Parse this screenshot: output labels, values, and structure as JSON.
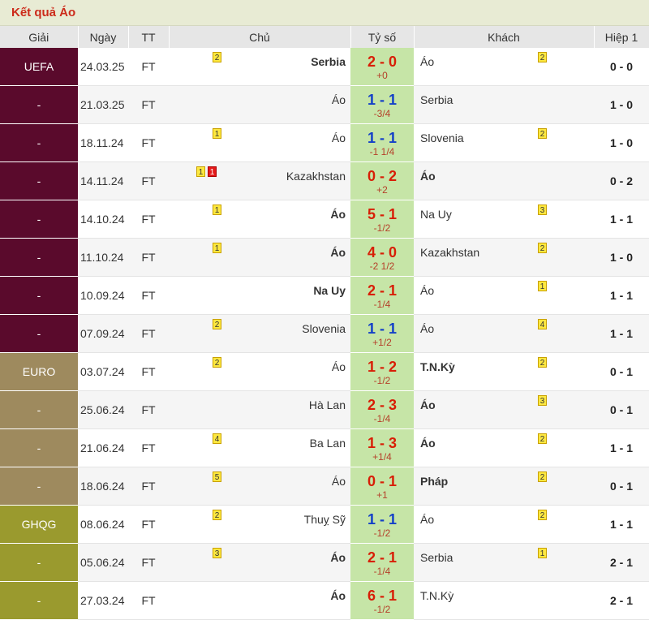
{
  "title": "Kết quả Áo",
  "columns": [
    "Giải",
    "Ngày",
    "TT",
    "Chủ",
    "Tỷ số",
    "Khách",
    "Hiệp 1"
  ],
  "league_colors": {
    "UEFA": "#5a0a2c",
    "EURO": "#9e8a5e",
    "GHQG": "#9a9a2e"
  },
  "rows": [
    {
      "league": "UEFA",
      "league_group": "UEFA",
      "date": "24.03.25",
      "status": "FT",
      "home": "Serbia",
      "home_bold": true,
      "home_cards": [
        {
          "type": "yellow",
          "n": "2"
        }
      ],
      "score": "2 - 0",
      "result": "win",
      "hc": "+0",
      "away": "Áo",
      "away_bold": false,
      "away_cards": [
        {
          "type": "yellow",
          "n": "2"
        }
      ],
      "ht": "0 - 0"
    },
    {
      "league": "-",
      "league_group": "UEFA",
      "date": "21.03.25",
      "status": "FT",
      "home": "Áo",
      "home_bold": false,
      "home_cards": [],
      "score": "1 - 1",
      "result": "draw",
      "hc": "-3/4",
      "away": "Serbia",
      "away_bold": false,
      "away_cards": [],
      "ht": "1 - 0"
    },
    {
      "league": "-",
      "league_group": "UEFA",
      "date": "18.11.24",
      "status": "FT",
      "home": "Áo",
      "home_bold": false,
      "home_cards": [
        {
          "type": "yellow",
          "n": "1"
        }
      ],
      "score": "1 - 1",
      "result": "draw",
      "hc": "-1 1/4",
      "away": "Slovenia",
      "away_bold": false,
      "away_cards": [
        {
          "type": "yellow",
          "n": "2"
        }
      ],
      "ht": "1 - 0"
    },
    {
      "league": "-",
      "league_group": "UEFA",
      "date": "14.11.24",
      "status": "FT",
      "home": "Kazakhstan",
      "home_bold": false,
      "home_cards": [
        {
          "type": "yellow",
          "n": "1"
        },
        {
          "type": "red",
          "n": "1"
        }
      ],
      "score": "0 - 2",
      "result": "win",
      "hc": "+2",
      "away": "Áo",
      "away_bold": true,
      "away_cards": [],
      "ht": "0 - 2"
    },
    {
      "league": "-",
      "league_group": "UEFA",
      "date": "14.10.24",
      "status": "FT",
      "home": "Áo",
      "home_bold": true,
      "home_cards": [
        {
          "type": "yellow",
          "n": "1"
        }
      ],
      "score": "5 - 1",
      "result": "win",
      "hc": "-1/2",
      "away": "Na Uy",
      "away_bold": false,
      "away_cards": [
        {
          "type": "yellow",
          "n": "3"
        }
      ],
      "ht": "1 - 1"
    },
    {
      "league": "-",
      "league_group": "UEFA",
      "date": "11.10.24",
      "status": "FT",
      "home": "Áo",
      "home_bold": true,
      "home_cards": [
        {
          "type": "yellow",
          "n": "1"
        }
      ],
      "score": "4 - 0",
      "result": "win",
      "hc": "-2 1/2",
      "away": "Kazakhstan",
      "away_bold": false,
      "away_cards": [
        {
          "type": "yellow",
          "n": "2"
        }
      ],
      "ht": "1 - 0"
    },
    {
      "league": "-",
      "league_group": "UEFA",
      "date": "10.09.24",
      "status": "FT",
      "home": "Na Uy",
      "home_bold": true,
      "home_cards": [],
      "score": "2 - 1",
      "result": "win",
      "hc": "-1/4",
      "away": "Áo",
      "away_bold": false,
      "away_cards": [
        {
          "type": "yellow",
          "n": "1"
        }
      ],
      "ht": "1 - 1"
    },
    {
      "league": "-",
      "league_group": "UEFA",
      "date": "07.09.24",
      "status": "FT",
      "home": "Slovenia",
      "home_bold": false,
      "home_cards": [
        {
          "type": "yellow",
          "n": "2"
        }
      ],
      "score": "1 - 1",
      "result": "draw",
      "hc": "+1/2",
      "away": "Áo",
      "away_bold": false,
      "away_cards": [
        {
          "type": "yellow",
          "n": "4"
        }
      ],
      "ht": "1 - 1"
    },
    {
      "league": "EURO",
      "league_group": "EURO",
      "date": "03.07.24",
      "status": "FT",
      "home": "Áo",
      "home_bold": false,
      "home_cards": [
        {
          "type": "yellow",
          "n": "2"
        }
      ],
      "score": "1 - 2",
      "result": "win",
      "hc": "-1/2",
      "away": "T.N.Kỳ",
      "away_bold": true,
      "away_cards": [
        {
          "type": "yellow",
          "n": "2"
        }
      ],
      "ht": "0 - 1"
    },
    {
      "league": "-",
      "league_group": "EURO",
      "date": "25.06.24",
      "status": "FT",
      "home": "Hà Lan",
      "home_bold": false,
      "home_cards": [],
      "score": "2 - 3",
      "result": "win",
      "hc": "-1/4",
      "away": "Áo",
      "away_bold": true,
      "away_cards": [
        {
          "type": "yellow",
          "n": "3"
        }
      ],
      "ht": "0 - 1"
    },
    {
      "league": "-",
      "league_group": "EURO",
      "date": "21.06.24",
      "status": "FT",
      "home": "Ba Lan",
      "home_bold": false,
      "home_cards": [
        {
          "type": "yellow",
          "n": "4"
        }
      ],
      "score": "1 - 3",
      "result": "win",
      "hc": "+1/4",
      "away": "Áo",
      "away_bold": true,
      "away_cards": [
        {
          "type": "yellow",
          "n": "2"
        }
      ],
      "ht": "1 - 1"
    },
    {
      "league": "-",
      "league_group": "EURO",
      "date": "18.06.24",
      "status": "FT",
      "home": "Áo",
      "home_bold": false,
      "home_cards": [
        {
          "type": "yellow",
          "n": "5"
        }
      ],
      "score": "0 - 1",
      "result": "win",
      "hc": "+1",
      "away": "Pháp",
      "away_bold": true,
      "away_cards": [
        {
          "type": "yellow",
          "n": "2"
        }
      ],
      "ht": "0 - 1"
    },
    {
      "league": "GHQG",
      "league_group": "GHQG",
      "date": "08.06.24",
      "status": "FT",
      "home": "Thuỵ Sỹ",
      "home_bold": false,
      "home_cards": [
        {
          "type": "yellow",
          "n": "2"
        }
      ],
      "score": "1 - 1",
      "result": "draw",
      "hc": "-1/2",
      "away": "Áo",
      "away_bold": false,
      "away_cards": [
        {
          "type": "yellow",
          "n": "2"
        }
      ],
      "ht": "1 - 1"
    },
    {
      "league": "-",
      "league_group": "GHQG",
      "date": "05.06.24",
      "status": "FT",
      "home": "Áo",
      "home_bold": true,
      "home_cards": [
        {
          "type": "yellow",
          "n": "3"
        }
      ],
      "score": "2 - 1",
      "result": "win",
      "hc": "-1/4",
      "away": "Serbia",
      "away_bold": false,
      "away_cards": [
        {
          "type": "yellow",
          "n": "1"
        }
      ],
      "ht": "2 - 1"
    },
    {
      "league": "-",
      "league_group": "GHQG",
      "date": "27.03.24",
      "status": "FT",
      "home": "Áo",
      "home_bold": true,
      "home_cards": [],
      "score": "6 - 1",
      "result": "win",
      "hc": "-1/2",
      "away": "T.N.Kỳ",
      "away_bold": false,
      "away_cards": [],
      "ht": "2 - 1"
    }
  ]
}
